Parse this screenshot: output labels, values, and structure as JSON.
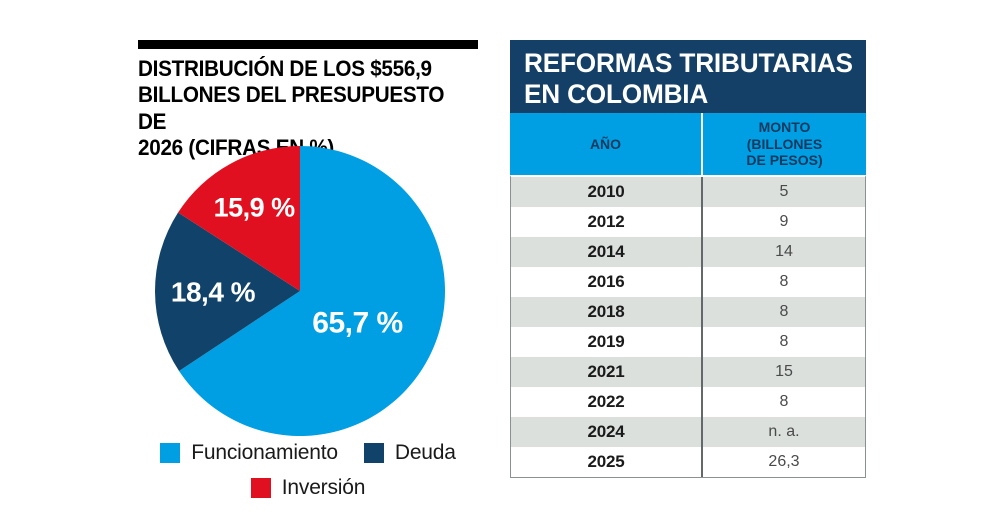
{
  "colors": {
    "light_blue": "#009ee2",
    "dark_blue": "#11436a",
    "red": "#e01020",
    "banner_navy": "#143f66",
    "row_gray": "#dbe0dd",
    "header_text_navy": "#12395e"
  },
  "pie_section": {
    "title_line1": "DISTRIBUCIÓN DE LOS $556,9",
    "title_line2": "BILLONES DEL PRESUPUESTO DE",
    "title_line3": "2026 (CIFRAS EN %)"
  },
  "table_section": {
    "title_line1": "REFORMAS TRIBUTARIAS",
    "title_line2": "EN COLOMBIA",
    "col_year": "AÑO",
    "col_monto_line1": "MONTO",
    "col_monto_line2": "(BILLONES",
    "col_monto_line3": "DE PESOS)"
  },
  "chart_data": [
    {
      "type": "pie",
      "title": "DISTRIBUCIÓN DE LOS $556,9 BILLONES DEL PRESUPUESTO DE 2026 (CIFRAS EN %)",
      "labels": [
        "Funcionamiento",
        "Deuda",
        "Inversión"
      ],
      "values": [
        65.7,
        18.4,
        15.9
      ],
      "display_values": [
        "65,7 %",
        "18,4 %",
        "15,9 %"
      ],
      "colors": [
        "#009ee2",
        "#11436a",
        "#e01020"
      ],
      "unit": "%",
      "start_angle": "12-oclock",
      "direction": "clockwise",
      "legend_position": "bottom"
    },
    {
      "type": "table",
      "title": "REFORMAS TRIBUTARIAS EN COLOMBIA",
      "columns": [
        "AÑO",
        "MONTO (BILLONES DE PESOS)"
      ],
      "rows": [
        [
          "2010",
          "5"
        ],
        [
          "2012",
          "9"
        ],
        [
          "2014",
          "14"
        ],
        [
          "2016",
          "8"
        ],
        [
          "2018",
          "8"
        ],
        [
          "2019",
          "8"
        ],
        [
          "2021",
          "15"
        ],
        [
          "2022",
          "8"
        ],
        [
          "2024",
          "n. a."
        ],
        [
          "2025",
          "26,3"
        ]
      ]
    }
  ]
}
